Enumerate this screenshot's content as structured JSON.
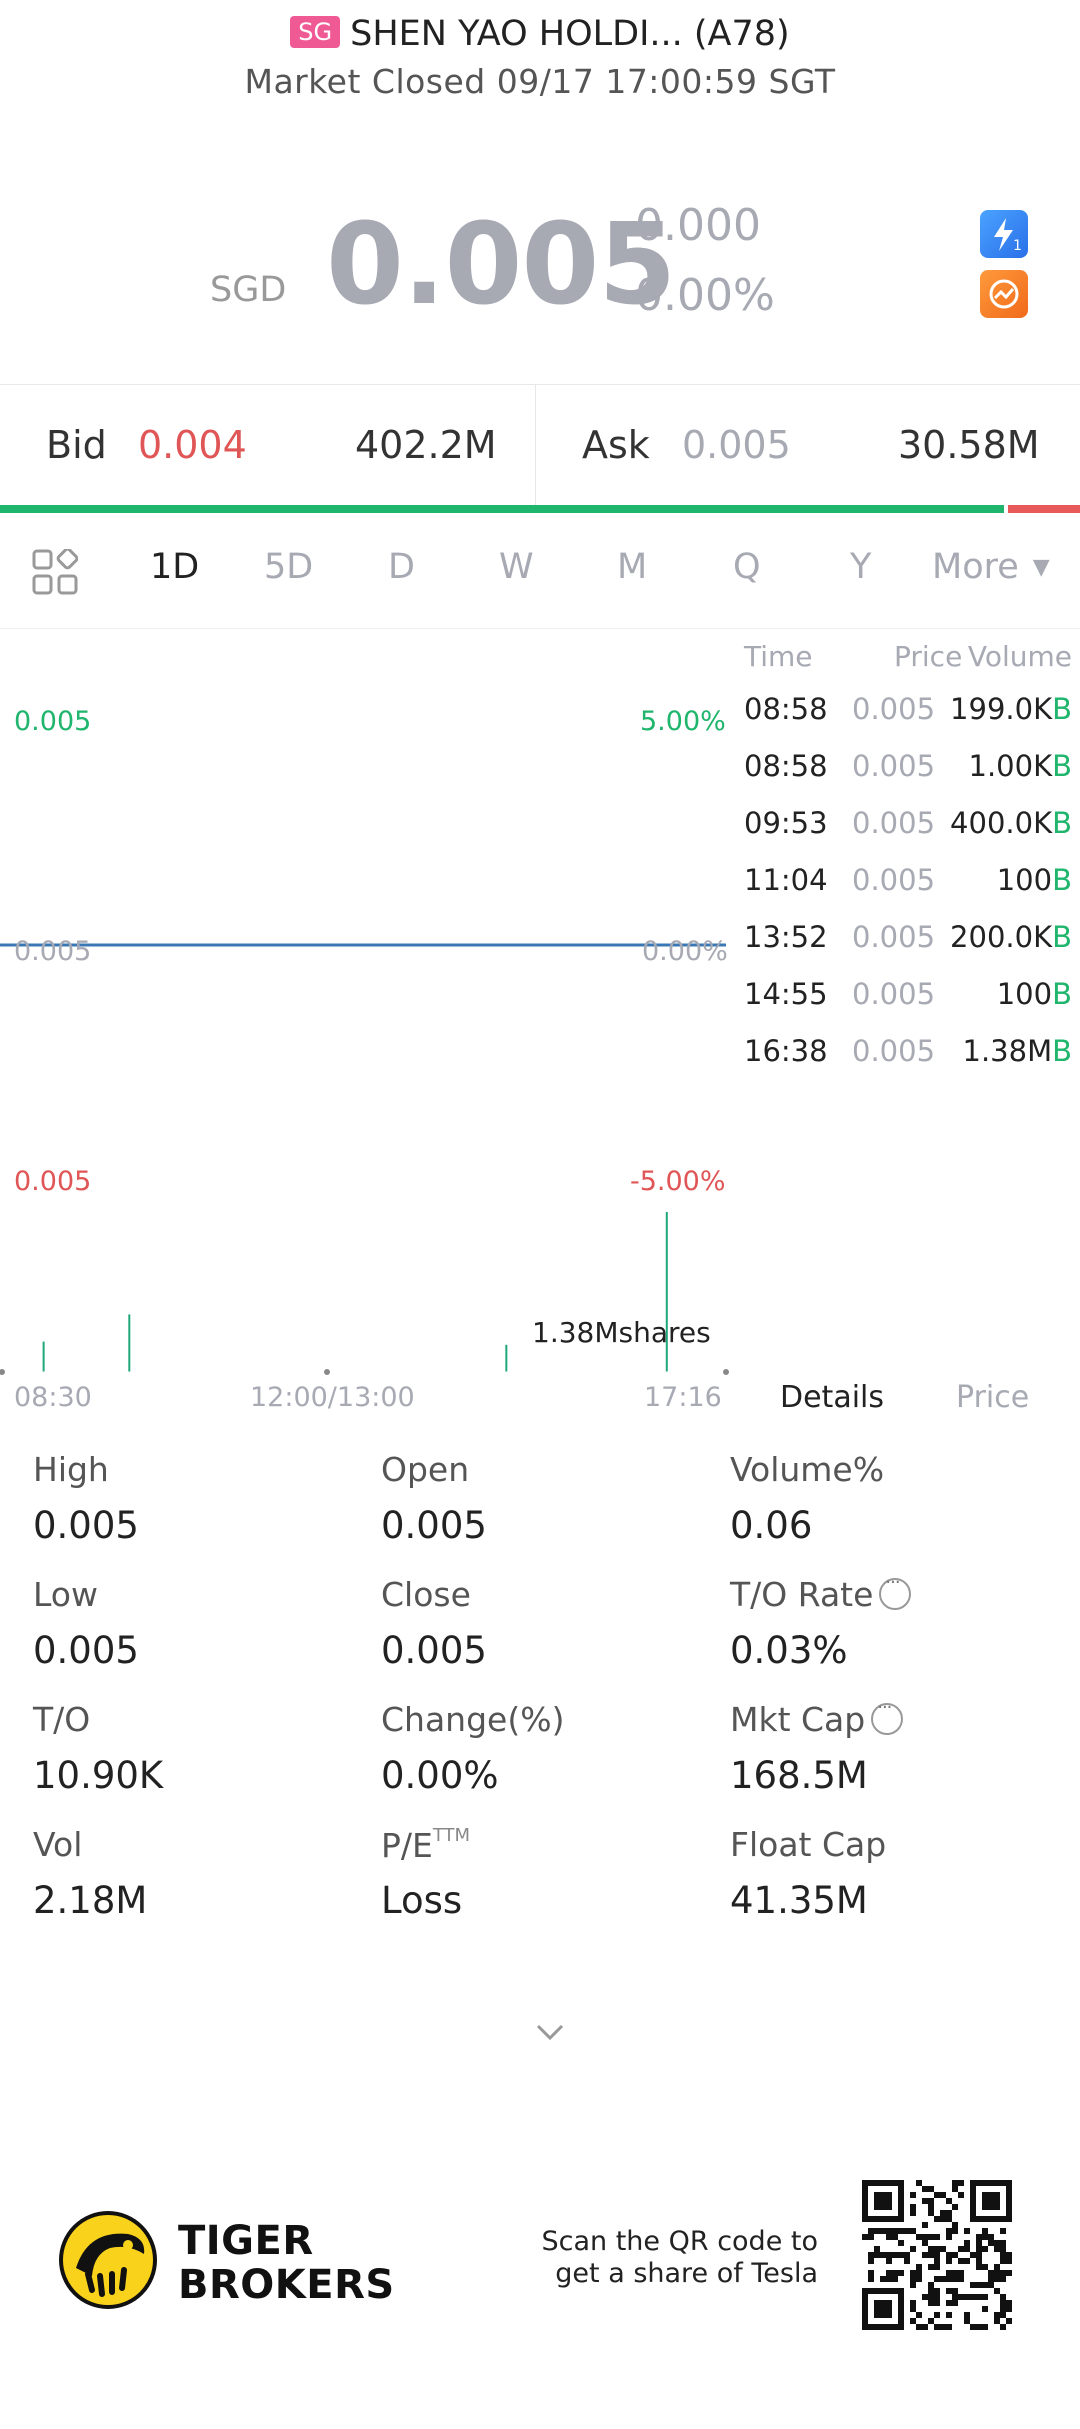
{
  "header": {
    "market_badge": "SG",
    "title": "SHEN YAO HOLDI... (A78)",
    "status": "Market Closed 09/17 17:00:59 SGT"
  },
  "quote": {
    "currency": "SGD",
    "price": "0.005",
    "change": "0.000",
    "change_pct": "0.00%",
    "icons": [
      "flash-quote-icon",
      "chart-analysis-icon"
    ],
    "price_color": "#a7a9b3"
  },
  "bidask": {
    "bid_label": "Bid",
    "bid_price": "0.004",
    "bid_volume": "402.2M",
    "ask_label": "Ask",
    "ask_price": "0.005",
    "ask_volume": "30.58M",
    "bid_ratio": 0.93,
    "bid_color": "#1fb56c",
    "ask_color": "#e85a5a"
  },
  "periods": {
    "items": [
      "1D",
      "5D",
      "D",
      "W",
      "M",
      "Q",
      "Y"
    ],
    "active": "1D",
    "more": "More"
  },
  "chart": {
    "price_top": "0.005",
    "pct_top": "5.00%",
    "price_mid": "0.005",
    "pct_mid": "0.00%",
    "price_bottom": "0.005",
    "pct_bottom": "-5.00%",
    "volume_label": "1.38Mshares",
    "time_start": "08:30",
    "time_mid": "12:00/13:00",
    "time_end": "17:16",
    "line_color": "#3a78b5",
    "volume_bars": [
      {
        "time": "08:58",
        "rel": 0.19
      },
      {
        "time": "09:53",
        "rel": 0.36
      },
      {
        "time": "14:55",
        "rel": 0.17
      },
      {
        "time": "16:38",
        "rel": 1.0
      }
    ]
  },
  "ticks": {
    "headers": [
      "Time",
      "Price",
      "Volume"
    ],
    "rows": [
      {
        "time": "08:58",
        "price": "0.005",
        "volume": "199.0K",
        "side": "B"
      },
      {
        "time": "08:58",
        "price": "0.005",
        "volume": "1.00K",
        "side": "B"
      },
      {
        "time": "09:53",
        "price": "0.005",
        "volume": "400.0K",
        "side": "B"
      },
      {
        "time": "11:04",
        "price": "0.005",
        "volume": "100",
        "side": "B"
      },
      {
        "time": "13:52",
        "price": "0.005",
        "volume": "200.0K",
        "side": "B"
      },
      {
        "time": "14:55",
        "price": "0.005",
        "volume": "100",
        "side": "B"
      },
      {
        "time": "16:38",
        "price": "0.005",
        "volume": "1.38M",
        "side": "B"
      }
    ]
  },
  "tabs": {
    "details": "Details",
    "price": "Price"
  },
  "stats": [
    {
      "label": "High",
      "value": "0.005"
    },
    {
      "label": "Open",
      "value": "0.005"
    },
    {
      "label": "Volume%",
      "value": "0.06"
    },
    {
      "label": "Low",
      "value": "0.005"
    },
    {
      "label": "Close",
      "value": "0.005"
    },
    {
      "label": "T/O Rate",
      "value": "0.03%",
      "info": true
    },
    {
      "label": "T/O",
      "value": "10.90K"
    },
    {
      "label": "Change(%)",
      "value": "0.00%"
    },
    {
      "label": "Mkt Cap",
      "value": "168.5M",
      "info": true
    },
    {
      "label": "Vol",
      "value": "2.18M"
    },
    {
      "label": "P/E",
      "sup": "TTM",
      "value": "Loss"
    },
    {
      "label": "Float Cap",
      "value": "41.35M"
    }
  ],
  "footer": {
    "brand_line1": "TIGER",
    "brand_line2": "BROKERS",
    "scan_line1": "Scan the QR code to",
    "scan_line2": "get a share of Tesla"
  }
}
